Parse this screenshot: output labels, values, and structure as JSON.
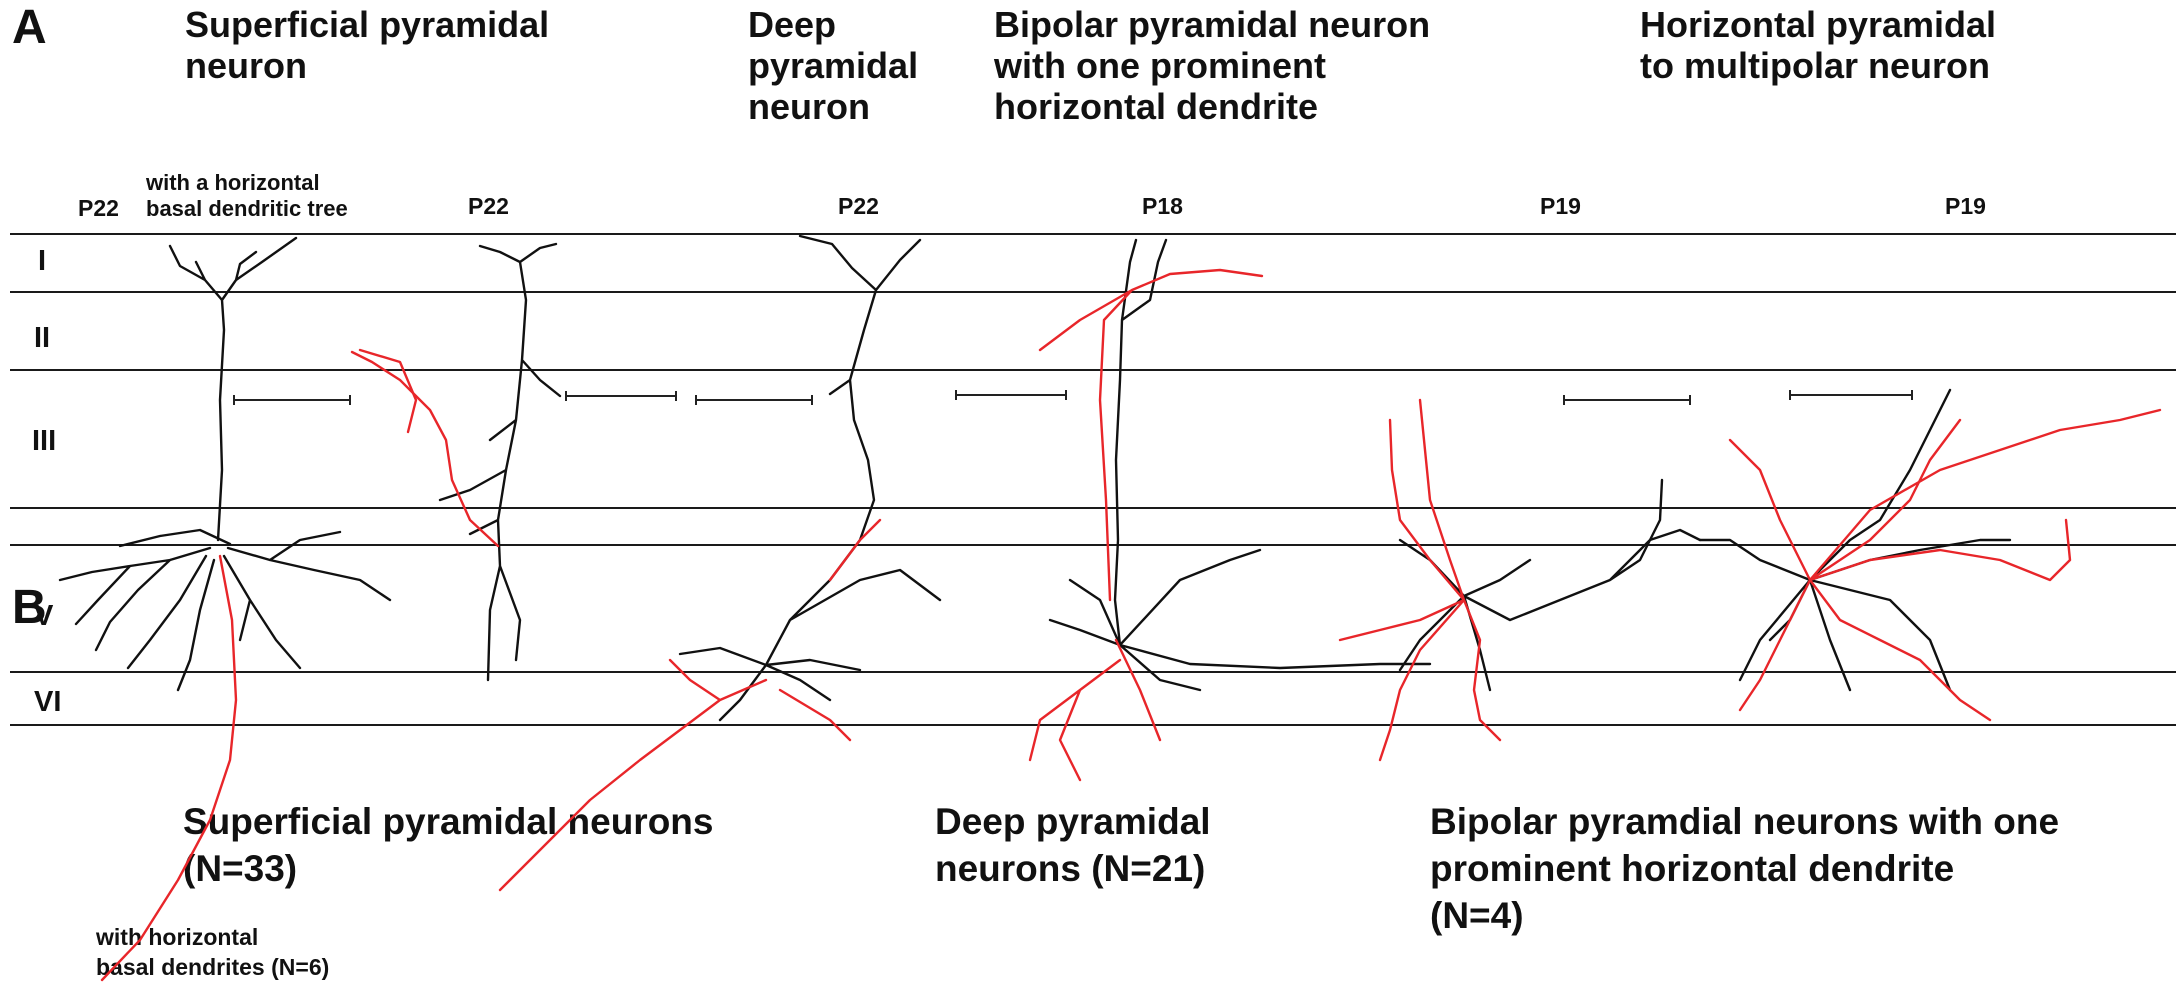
{
  "panel_labels": {
    "a": "A",
    "b": "B"
  },
  "headings_a": {
    "superficial": "Superficial pyramidal\nneuron",
    "deep": "Deep\npyramidal\nneuron",
    "bipolar": "Bipolar pyramidal neuron\nwith one prominent\nhorizontal dendrite",
    "horizontal": "Horizontal pyramidal\nto multipolar neuron"
  },
  "ages": [
    "P22",
    "P22",
    "P22",
    "P18",
    "P19",
    "P19"
  ],
  "note_horizontal_basal": "with a horizontal\nbasal dendritic tree",
  "layers": [
    "I",
    "II",
    "III",
    "V",
    "VI"
  ],
  "headings_b": {
    "superficial": "Superficial pyramidal neurons\n(N=33)",
    "deep": "Deep pyramidal\nneurons (N=21)",
    "bipolar": "Bipolar pyramdial neurons with one\nprominent horizontal dendrite\n(N=4)"
  },
  "note_b": "with horizontal\nbasal dendrites (N=6)",
  "colors": {
    "dendrite": "#111111",
    "axon": "#e8262a",
    "layer_line": "#1a1a1a"
  },
  "icons": {
    "dendrite_trace": "black-line",
    "axon_trace": "red-line",
    "scale_bar": "scale-bar"
  }
}
